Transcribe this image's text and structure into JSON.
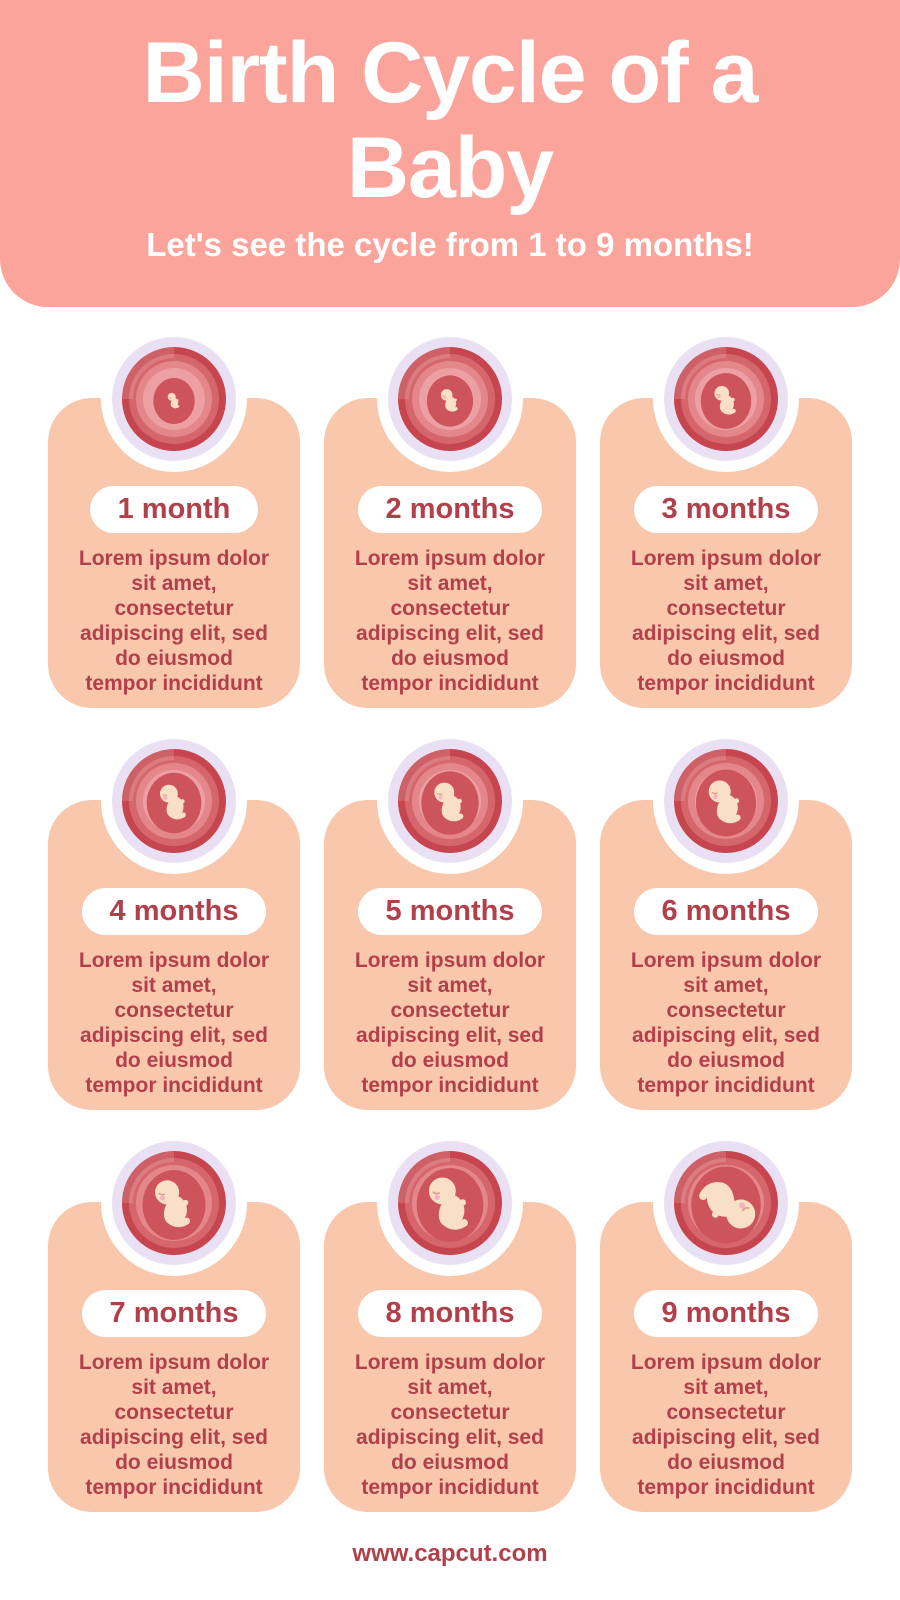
{
  "header": {
    "title": "Birth Cycle of a\nBaby",
    "subtitle": "Let's see the cycle from 1 to 9 months!"
  },
  "months": [
    {
      "label": "1 month",
      "description": "Lorem ipsum dolor\nsit amet,\nconsectetur\nadipiscing elit, sed\ndo eiusmod\ntempor incididunt",
      "stage_scale": 0.38,
      "stage_rotation": 0
    },
    {
      "label": "2 months",
      "description": "Lorem ipsum dolor\nsit amet,\nconsectetur\nadipiscing elit, sed\ndo eiusmod\ntempor incididunt",
      "stage_scale": 0.55,
      "stage_rotation": 0
    },
    {
      "label": "3 months",
      "description": "Lorem ipsum dolor\nsit amet,\nconsectetur\nadipiscing elit, sed\ndo eiusmod\ntempor incididunt",
      "stage_scale": 0.7,
      "stage_rotation": 0
    },
    {
      "label": "4 months",
      "description": "Lorem ipsum dolor\nsit amet,\nconsectetur\nadipiscing elit, sed\ndo eiusmod\ntempor incididunt",
      "stage_scale": 0.85,
      "stage_rotation": 0
    },
    {
      "label": "5 months",
      "description": "Lorem ipsum dolor\nsit amet,\nconsectetur\nadipiscing elit, sed\ndo eiusmod\ntempor incididunt",
      "stage_scale": 0.95,
      "stage_rotation": 0
    },
    {
      "label": "6 months",
      "description": "Lorem ipsum dolor\nsit amet,\nconsectetur\nadipiscing elit, sed\ndo eiusmod\ntempor incididunt",
      "stage_scale": 1.05,
      "stage_rotation": 0
    },
    {
      "label": "7 months",
      "description": "Lorem ipsum dolor\nsit amet,\nconsectetur\nadipiscing elit, sed\ndo eiusmod\ntempor incididunt",
      "stage_scale": 1.15,
      "stage_rotation": 0
    },
    {
      "label": "8 months",
      "description": "Lorem ipsum dolor\nsit amet,\nconsectetur\nadipiscing elit, sed\ndo eiusmod\ntempor incididunt",
      "stage_scale": 1.28,
      "stage_rotation": 0
    },
    {
      "label": "9 months",
      "description": "Lorem ipsum dolor\nsit amet,\nconsectetur\nadipiscing elit, sed\ndo eiusmod\ntempor incididunt",
      "stage_scale": 1.38,
      "stage_rotation": 150
    }
  ],
  "footer": {
    "url": "www.capcut.com"
  },
  "colors": {
    "header_background": "#FAA49C",
    "card_background": "#F8C7AC",
    "accent_text_red": "#B2404A",
    "pill_background": "#FFFFFF",
    "womb_ring_lavender": "#EAE0F3",
    "womb_outer_red": "#C6454E",
    "womb_mid_red": "#D5666C",
    "womb_light_pink": "#EDA0A3",
    "fetus_skin": "#F8DFC5"
  }
}
